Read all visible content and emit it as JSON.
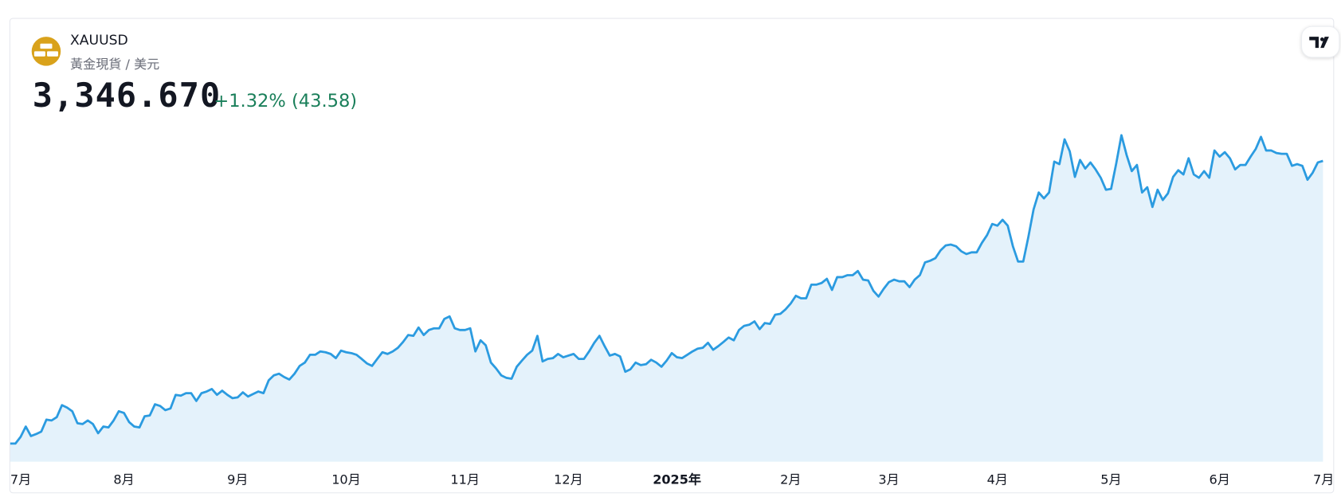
{
  "chart_data": {
    "type": "area",
    "title": "XAUUSD",
    "subtitle": "黃金現貨 / 美元",
    "annotations": [
      "3,346.670",
      "+1.32% (43.58)"
    ],
    "color": "#2b9be0",
    "values": [
      2331,
      2331,
      2355,
      2392,
      2358,
      2365,
      2374,
      2417,
      2414,
      2426,
      2469,
      2460,
      2447,
      2404,
      2401,
      2414,
      2401,
      2368,
      2392,
      2389,
      2414,
      2447,
      2441,
      2408,
      2392,
      2389,
      2429,
      2432,
      2472,
      2466,
      2451,
      2457,
      2506,
      2503,
      2512,
      2512,
      2484,
      2512,
      2518,
      2527,
      2506,
      2521,
      2506,
      2494,
      2497,
      2515,
      2500,
      2509,
      2518,
      2512,
      2558,
      2576,
      2582,
      2570,
      2561,
      2582,
      2610,
      2622,
      2650,
      2650,
      2662,
      2659,
      2653,
      2638,
      2665,
      2659,
      2656,
      2650,
      2635,
      2619,
      2610,
      2635,
      2659,
      2653,
      2662,
      2675,
      2696,
      2721,
      2718,
      2748,
      2721,
      2739,
      2745,
      2745,
      2779,
      2788,
      2745,
      2739,
      2739,
      2745,
      2662,
      2702,
      2684,
      2622,
      2601,
      2576,
      2567,
      2564,
      2607,
      2629,
      2650,
      2665,
      2718,
      2626,
      2635,
      2638,
      2653,
      2641,
      2647,
      2653,
      2635,
      2635,
      2662,
      2693,
      2718,
      2681,
      2647,
      2653,
      2644,
      2589,
      2598,
      2622,
      2613,
      2616,
      2632,
      2622,
      2607,
      2629,
      2656,
      2641,
      2638,
      2650,
      2662,
      2672,
      2675,
      2693,
      2668,
      2681,
      2696,
      2712,
      2702,
      2739,
      2754,
      2758,
      2770,
      2742,
      2764,
      2761,
      2794,
      2797,
      2813,
      2834,
      2862,
      2853,
      2853,
      2902,
      2902,
      2908,
      2923,
      2883,
      2929,
      2929,
      2936,
      2936,
      2951,
      2920,
      2917,
      2880,
      2859,
      2887,
      2911,
      2920,
      2914,
      2914,
      2893,
      2920,
      2936,
      2982,
      2988,
      2997,
      3025,
      3043,
      3046,
      3040,
      3022,
      3012,
      3018,
      3018,
      3052,
      3080,
      3120,
      3114,
      3135,
      3114,
      3040,
      2985,
      2985,
      3074,
      3172,
      3233,
      3212,
      3233,
      3344,
      3335,
      3424,
      3381,
      3289,
      3350,
      3319,
      3341,
      3316,
      3286,
      3243,
      3246,
      3338,
      3439,
      3368,
      3310,
      3332,
      3233,
      3252,
      3181,
      3243,
      3206,
      3230,
      3289,
      3313,
      3298,
      3356,
      3298,
      3286,
      3310,
      3286,
      3384,
      3362,
      3378,
      3356,
      3316,
      3332,
      3332,
      3362,
      3390,
      3433,
      3384,
      3384,
      3375,
      3372,
      3372,
      3329,
      3335,
      3329,
      3279,
      3304,
      3341,
      3346.67
    ],
    "xlim": [
      0,
      254
    ],
    "xticks": [
      {
        "value": 0,
        "label": "7月"
      },
      {
        "value": 22,
        "label": "8月"
      },
      {
        "value": 44,
        "label": "9月"
      },
      {
        "value": 65,
        "label": "10月"
      },
      {
        "value": 88,
        "label": "11月"
      },
      {
        "value": 108,
        "label": "12月"
      },
      {
        "value": 129,
        "label": "2025年"
      },
      {
        "value": 151,
        "label": "2月"
      },
      {
        "value": 170,
        "label": "3月"
      },
      {
        "value": 191,
        "label": "4月"
      },
      {
        "value": 213,
        "label": "5月"
      },
      {
        "value": 234,
        "label": "6月"
      },
      {
        "value": 254,
        "label": "7月"
      }
    ],
    "ylim": [
      2266,
      3464
    ]
  }
}
